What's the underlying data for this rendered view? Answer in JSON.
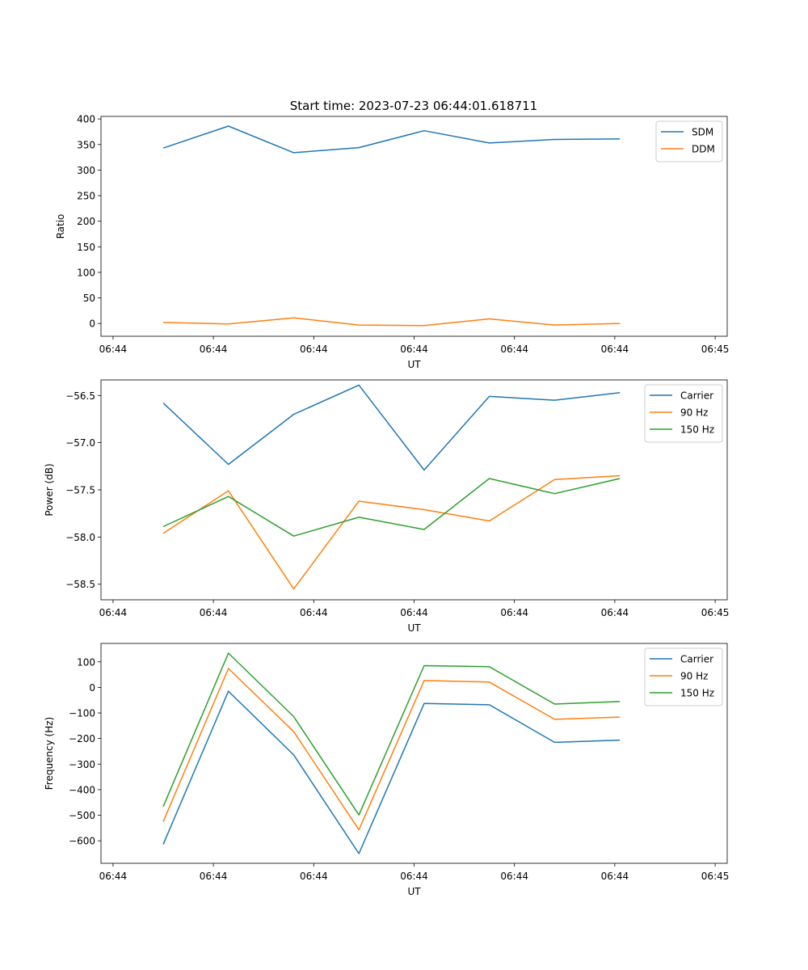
{
  "figure": {
    "title": "Start time: 2023-07-23 06:44:01.618711"
  },
  "chart_data": [
    {
      "type": "line",
      "xlabel": "UT",
      "ylabel": "Ratio",
      "x_tick_labels": [
        "06:44",
        "06:44",
        "06:44",
        "06:44",
        "06:44",
        "06:44",
        "06:45"
      ],
      "x_ticks": [
        0,
        1,
        2,
        3,
        4,
        5,
        6
      ],
      "x": [
        0.5,
        1.15,
        1.8,
        2.45,
        3.1,
        3.75,
        4.4,
        5.05
      ],
      "xlim": [
        -0.12,
        6.12
      ],
      "y_ticks": [
        0,
        50,
        100,
        150,
        200,
        250,
        300,
        350,
        400
      ],
      "ylim": [
        -25,
        405
      ],
      "legend_position": "upper right",
      "series": [
        {
          "name": "SDM",
          "color": "#1f77b4",
          "values": [
            343,
            386,
            334,
            344,
            377,
            353,
            360,
            361
          ]
        },
        {
          "name": "DDM",
          "color": "#ff7f0e",
          "values": [
            2,
            -1,
            11,
            -3,
            -4,
            9,
            -3,
            0
          ]
        }
      ]
    },
    {
      "type": "line",
      "xlabel": "UT",
      "ylabel": "Power (dB)",
      "x_tick_labels": [
        "06:44",
        "06:44",
        "06:44",
        "06:44",
        "06:44",
        "06:44",
        "06:45"
      ],
      "x_ticks": [
        0,
        1,
        2,
        3,
        4,
        5,
        6
      ],
      "x": [
        0.5,
        1.15,
        1.8,
        2.45,
        3.1,
        3.75,
        4.4,
        5.05
      ],
      "xlim": [
        -0.12,
        6.12
      ],
      "y_ticks": [
        -58.5,
        -58.0,
        -57.5,
        -57.0,
        -56.5
      ],
      "y_tick_labels": [
        "−58.5",
        "−58.0",
        "−57.5",
        "−57.0",
        "−56.5"
      ],
      "ylim": [
        -58.665,
        -56.335
      ],
      "legend_position": "upper right",
      "series": [
        {
          "name": "Carrier",
          "color": "#1f77b4",
          "values": [
            -56.58,
            -57.23,
            -56.7,
            -56.39,
            -57.29,
            -56.51,
            -56.55,
            -56.47
          ]
        },
        {
          "name": "90 Hz",
          "color": "#ff7f0e",
          "values": [
            -57.96,
            -57.51,
            -58.55,
            -57.62,
            -57.71,
            -57.83,
            -57.39,
            -57.35
          ]
        },
        {
          "name": "150 Hz",
          "color": "#2ca02c",
          "values": [
            -57.89,
            -57.57,
            -57.99,
            -57.79,
            -57.92,
            -57.38,
            -57.54,
            -57.38
          ]
        }
      ]
    },
    {
      "type": "line",
      "xlabel": "UT",
      "ylabel": "Frequency (Hz)",
      "x_tick_labels": [
        "06:44",
        "06:44",
        "06:44",
        "06:44",
        "06:44",
        "06:44",
        "06:45"
      ],
      "x_ticks": [
        0,
        1,
        2,
        3,
        4,
        5,
        6
      ],
      "x": [
        0.5,
        1.15,
        1.8,
        2.45,
        3.1,
        3.75,
        4.4,
        5.05
      ],
      "xlim": [
        -0.12,
        6.12
      ],
      "y_ticks": [
        -600,
        -500,
        -400,
        -300,
        -200,
        -100,
        0,
        100
      ],
      "y_tick_labels": [
        "−600",
        "−500",
        "−400",
        "−300",
        "−200",
        "−100",
        "0",
        "100"
      ],
      "ylim": [
        -688,
        172
      ],
      "legend_position": "upper right",
      "series": [
        {
          "name": "Carrier",
          "color": "#1f77b4",
          "values": [
            -614,
            -15,
            -264,
            -650,
            -63,
            -68,
            -215,
            -206
          ]
        },
        {
          "name": "90 Hz",
          "color": "#ff7f0e",
          "values": [
            -525,
            74,
            -173,
            -557,
            27,
            21,
            -125,
            -116
          ]
        },
        {
          "name": "150 Hz",
          "color": "#2ca02c",
          "values": [
            -466,
            134,
            -114,
            -499,
            85,
            81,
            -65,
            -55
          ]
        }
      ]
    }
  ]
}
